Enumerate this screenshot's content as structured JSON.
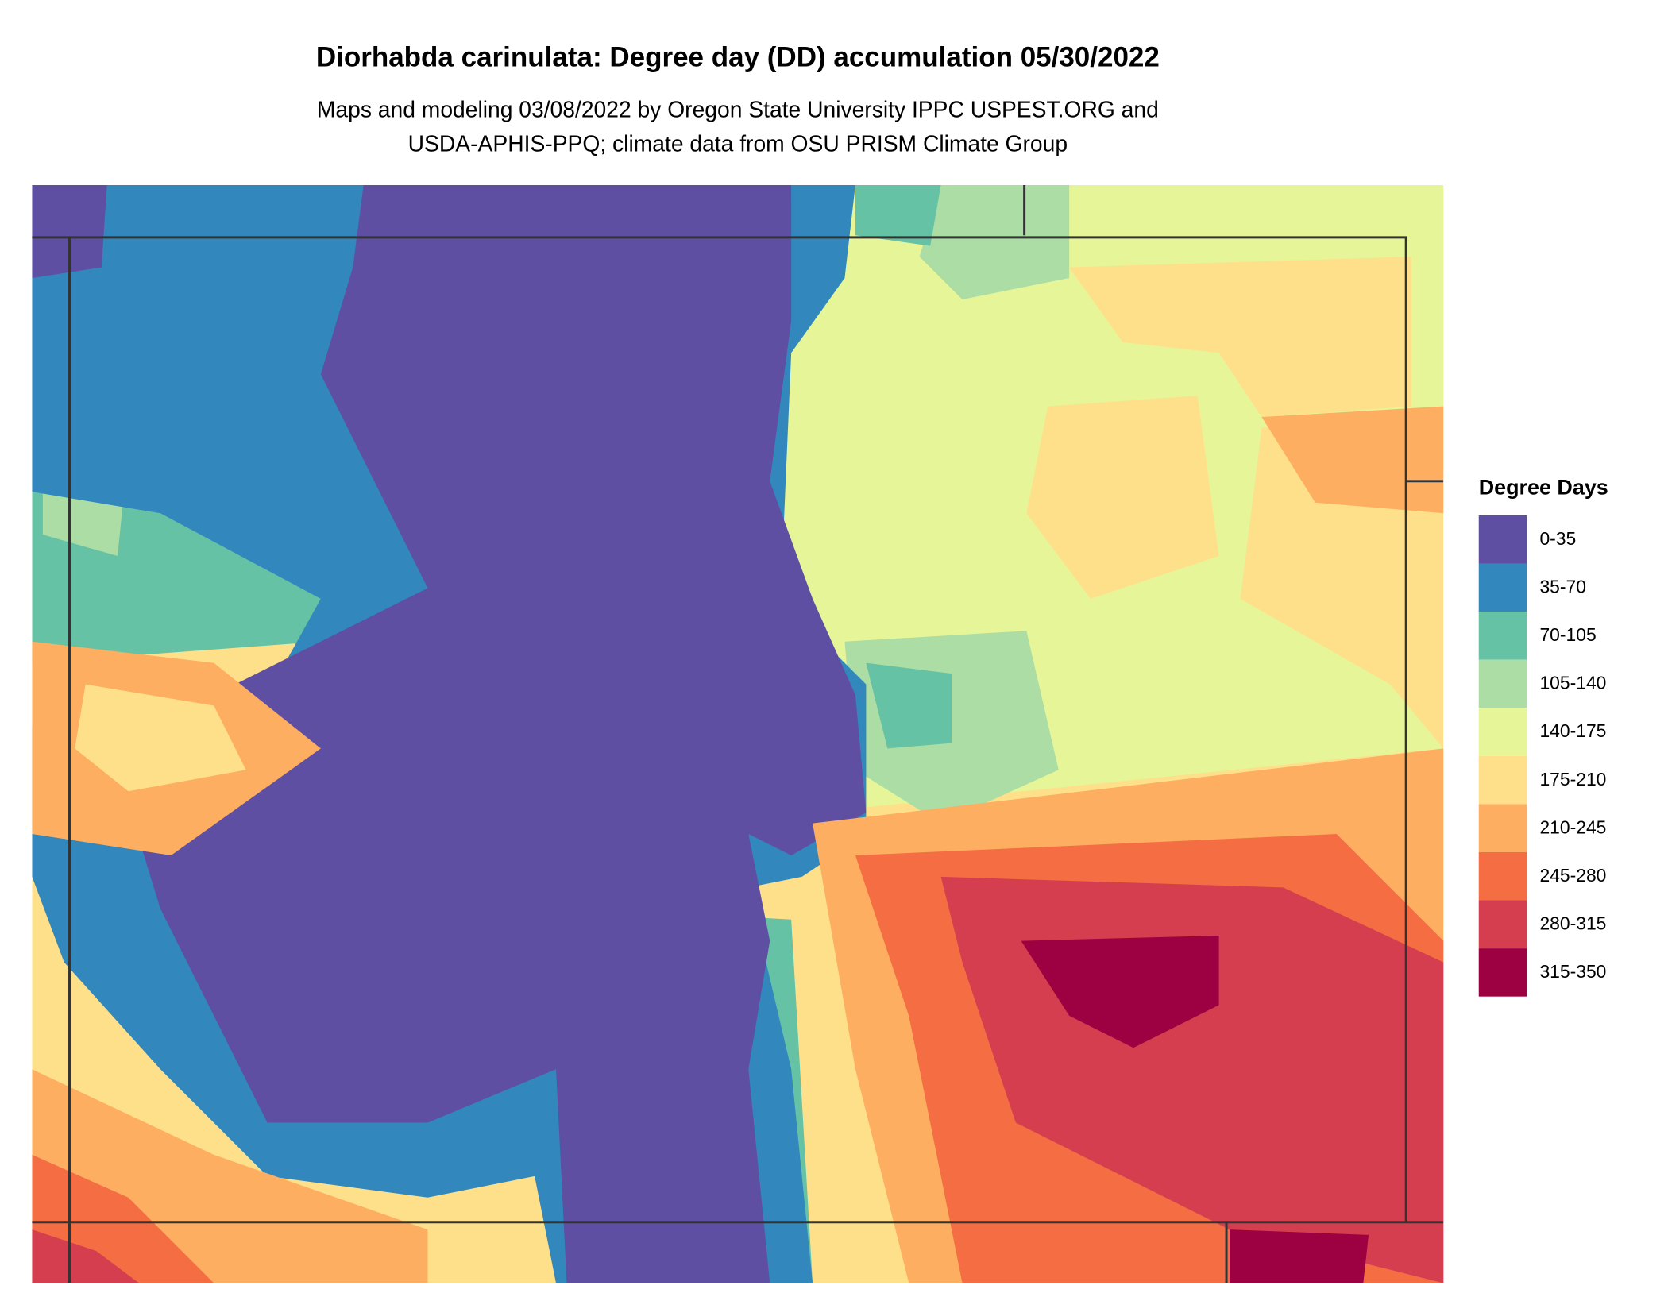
{
  "title": "Diorhabda carinulata: Degree day (DD) accumulation 05/30/2022",
  "subtitle": [
    "Maps and modeling 03/08/2022 by Oregon State University IPPC USPEST.ORG and",
    "USDA-APHIS-PPQ; climate data from OSU PRISM Climate Group"
  ],
  "legend": {
    "title": "Degree Days",
    "items": [
      {
        "label": "0-35",
        "color": "#5e4fa2"
      },
      {
        "label": "35-70",
        "color": "#3288bd"
      },
      {
        "label": "70-105",
        "color": "#66c2a5"
      },
      {
        "label": "105-140",
        "color": "#abdda4"
      },
      {
        "label": "140-175",
        "color": "#e6f598"
      },
      {
        "label": "175-210",
        "color": "#fee08b"
      },
      {
        "label": "210-245",
        "color": "#fdae61"
      },
      {
        "label": "245-280",
        "color": "#f46d43"
      },
      {
        "label": "280-315",
        "color": "#d53e4f"
      },
      {
        "label": "315-350",
        "color": "#9e0142"
      }
    ]
  }
}
